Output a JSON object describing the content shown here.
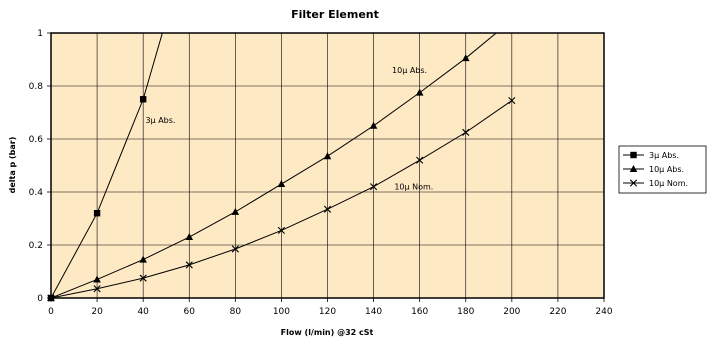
{
  "chart_data": {
    "type": "line",
    "title": "Filter Element",
    "xlabel": "Flow (l/min) @32 cSt",
    "ylabel": "delta p (bar)",
    "xlim": [
      0,
      240
    ],
    "ylim": [
      0,
      1
    ],
    "x_ticks": [
      "0",
      "20",
      "40",
      "60",
      "80",
      "100",
      "120",
      "140",
      "160",
      "180",
      "200",
      "220",
      "240"
    ],
    "y_ticks": [
      "0",
      "0.2",
      "0.4",
      "0.6",
      "0.8",
      "1"
    ],
    "grid": true,
    "legend": "right",
    "plot_background": "#fde9c4",
    "series": [
      {
        "name": "3µ Abs.",
        "marker": "square",
        "x": [
          0,
          20,
          40,
          50
        ],
        "y": [
          0,
          0.32,
          0.75,
          1.05
        ],
        "marked_x": [
          0,
          20,
          40
        ]
      },
      {
        "name": "10µ Abs.",
        "marker": "triangle",
        "x": [
          0,
          20,
          40,
          60,
          80,
          100,
          120,
          140,
          160,
          180,
          196
        ],
        "y": [
          0,
          0.07,
          0.145,
          0.23,
          0.325,
          0.43,
          0.535,
          0.65,
          0.775,
          0.905,
          1.02
        ],
        "marked_x": [
          0,
          20,
          40,
          60,
          80,
          100,
          120,
          140,
          160,
          180
        ]
      },
      {
        "name": "10µ Nom.",
        "marker": "x",
        "x": [
          0,
          20,
          40,
          60,
          80,
          100,
          120,
          140,
          160,
          180,
          200
        ],
        "y": [
          0,
          0.035,
          0.075,
          0.125,
          0.185,
          0.255,
          0.335,
          0.42,
          0.52,
          0.625,
          0.745
        ],
        "marked_x": [
          0,
          20,
          40,
          60,
          80,
          100,
          120,
          140,
          160,
          180,
          200
        ]
      }
    ],
    "annotations": [
      {
        "text": "3µ Abs.",
        "x": 41,
        "y": 0.66
      },
      {
        "text": "10µ Abs.",
        "x": 148,
        "y": 0.85
      },
      {
        "text": "10µ Nom.",
        "x": 149,
        "y": 0.41
      }
    ]
  }
}
